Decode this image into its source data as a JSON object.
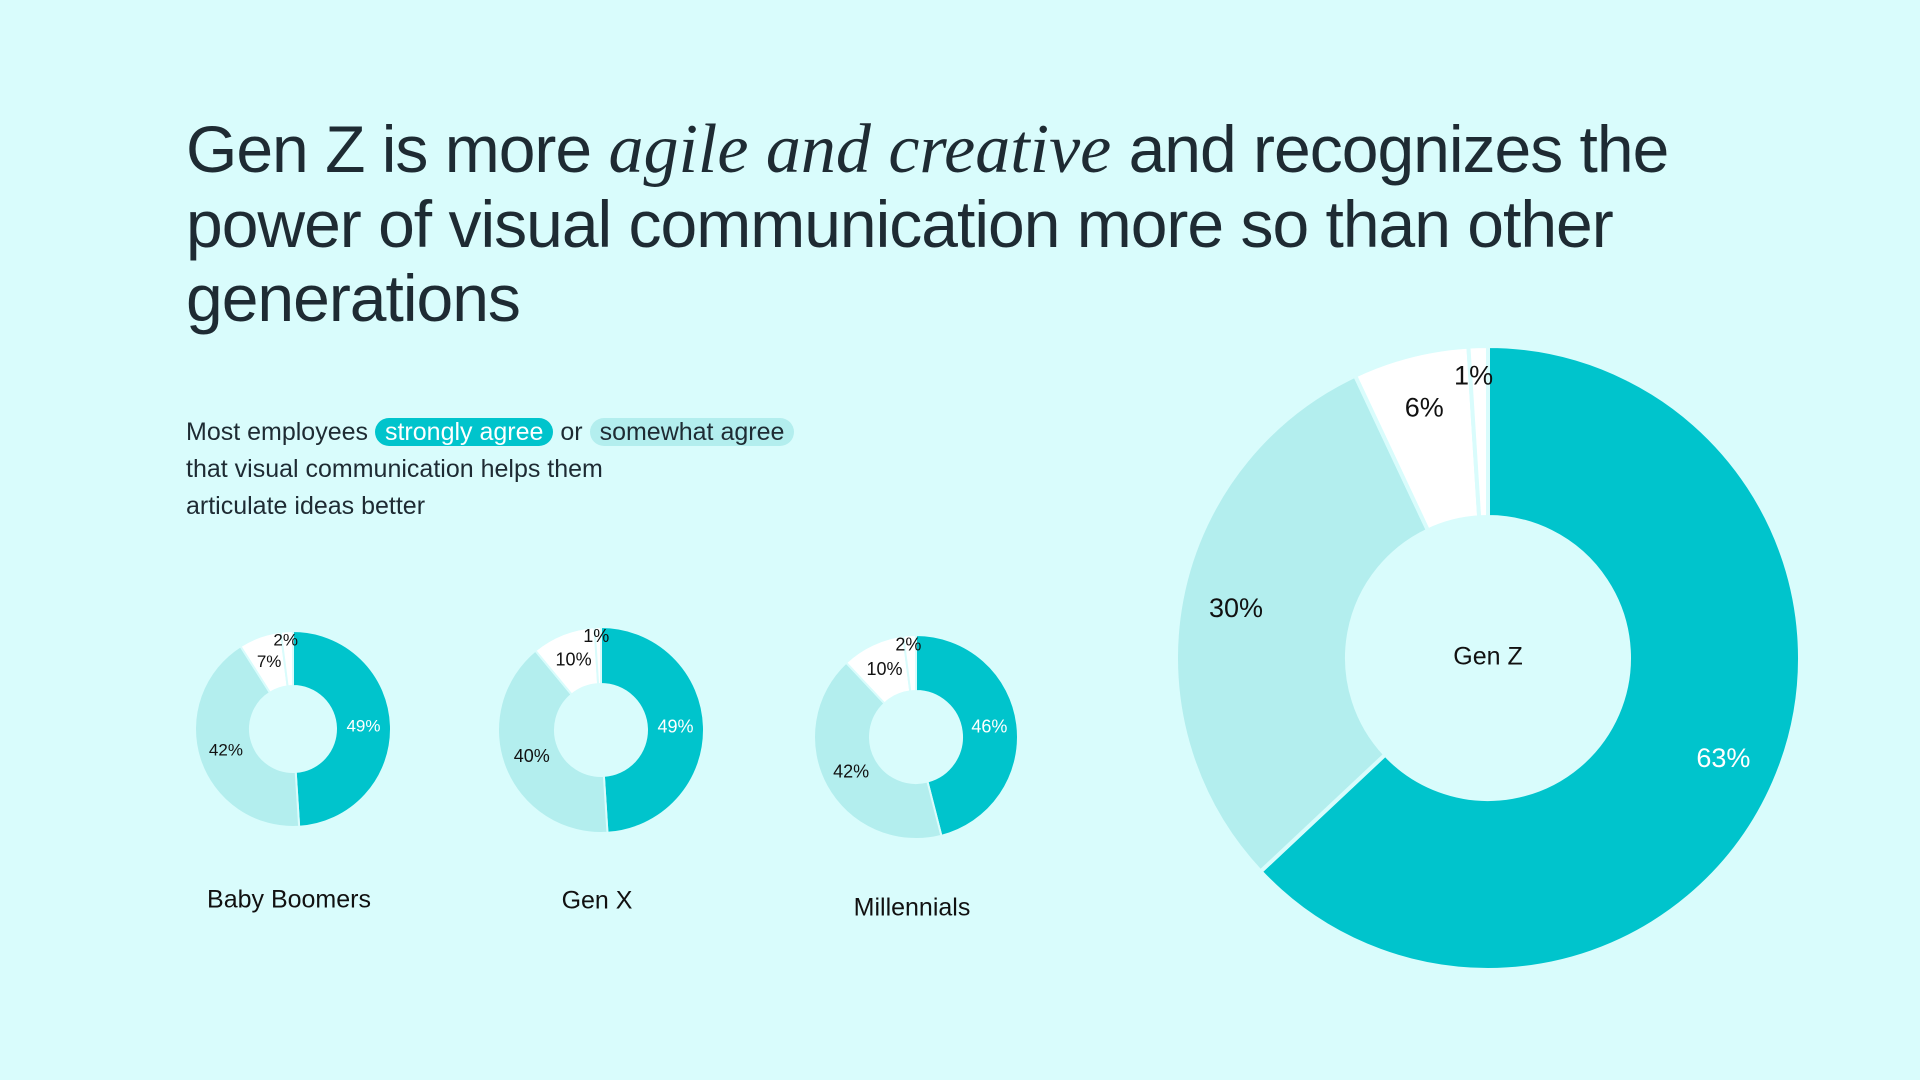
{
  "headline": [
    "Gen Z is more",
    "agile and creative",
    "and recognizes the power of visual communication more so than other generations"
  ],
  "subtitle": [
    "Most employees",
    "strongly agree",
    "or",
    "somewhat agree",
    "that visual communication helps them articulate ideas better"
  ],
  "chart_data": [
    {
      "type": "donut",
      "title": "Baby Boomers",
      "values": [
        49,
        42,
        7,
        2
      ],
      "value_labels": [
        "49%",
        "42%",
        "7%",
        "2%"
      ],
      "colors": [
        "#00c4cc",
        "#b3eeee",
        "#ffffff",
        "#ffffff"
      ]
    },
    {
      "type": "donut",
      "title": "Gen X",
      "values": [
        49,
        40,
        10,
        1
      ],
      "value_labels": [
        "49%",
        "40%",
        "10%",
        "1%"
      ],
      "colors": [
        "#00c4cc",
        "#b3eeee",
        "#ffffff",
        "#ffffff"
      ]
    },
    {
      "type": "donut",
      "title": "Millennials",
      "values": [
        46,
        42,
        10,
        2
      ],
      "value_labels": [
        "46%",
        "42%",
        "10%",
        "2%"
      ],
      "colors": [
        "#00c4cc",
        "#b3eeee",
        "#ffffff",
        "#ffffff"
      ]
    },
    {
      "type": "donut",
      "title": "Gen Z",
      "values": [
        63,
        30,
        6,
        1
      ],
      "value_labels": [
        "63%",
        "30%",
        "6%",
        "1%"
      ],
      "colors": [
        "#00c4cc",
        "#b3eeee",
        "#ffffff",
        "#ffffff"
      ]
    }
  ]
}
